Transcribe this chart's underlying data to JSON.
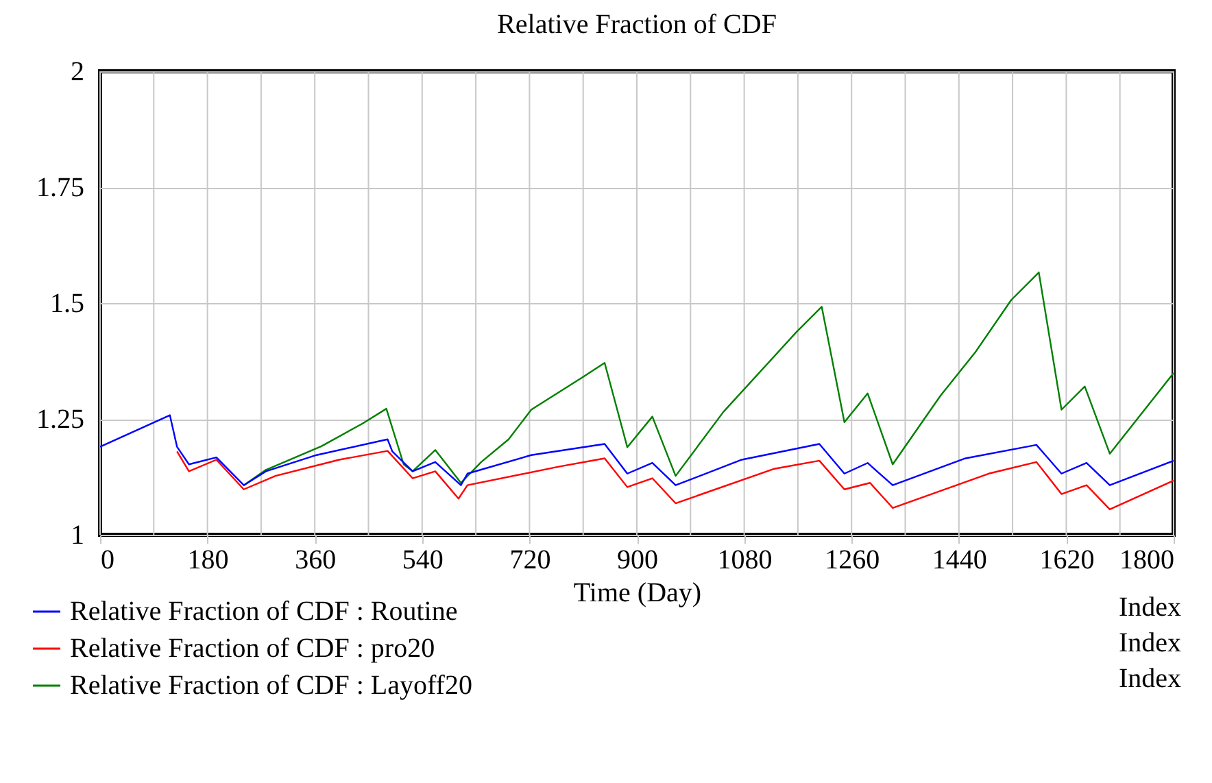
{
  "chart_data": {
    "type": "line",
    "title": "Relative Fraction of CDF",
    "xlabel": "Time (Day)",
    "xlim": [
      0,
      1800
    ],
    "xticks": [
      0,
      {
        "value": 90,
        "label": null
      },
      180,
      {
        "value": 270,
        "label": null
      },
      360,
      {
        "value": 450,
        "label": null
      },
      540,
      {
        "value": 630,
        "label": null
      },
      720,
      {
        "value": 810,
        "label": null
      },
      900,
      {
        "value": 990,
        "label": null
      },
      1080,
      {
        "value": 1170,
        "label": null
      },
      1260,
      {
        "value": 1350,
        "label": null
      },
      1440,
      {
        "value": 1530,
        "label": null
      },
      1620,
      {
        "value": 1710,
        "label": null
      },
      1800
    ],
    "ylim": [
      1,
      2
    ],
    "yticks": [
      1,
      1.25,
      1.5,
      1.75,
      2
    ],
    "grid": true,
    "legend": "bottom",
    "marker": "none",
    "annotations": [
      "Index",
      "Index",
      "Index"
    ],
    "series": [
      {
        "name": "Relative Fraction of CDF : Routine",
        "color": "#0000ff",
        "x": [
          0,
          117,
          129,
          149,
          195,
          241,
          278,
          363,
          482,
          490,
          524,
          562,
          605,
          616,
          723,
          846,
          884,
          926,
          965,
          1076,
          1206,
          1248,
          1287,
          1329,
          1451,
          1570,
          1612,
          1654,
          1693,
          1800
        ],
        "values": [
          1.19,
          1.258,
          1.19,
          1.152,
          1.167,
          1.107,
          1.137,
          1.172,
          1.206,
          1.18,
          1.137,
          1.157,
          1.107,
          1.132,
          1.172,
          1.196,
          1.132,
          1.155,
          1.107,
          1.162,
          1.196,
          1.132,
          1.155,
          1.107,
          1.165,
          1.194,
          1.132,
          1.155,
          1.107,
          1.16
        ]
      },
      {
        "name": "Relative Fraction of CDF : pro20",
        "color": "#ff0000",
        "x": [
          129,
          149,
          195,
          241,
          294,
          401,
          482,
          524,
          562,
          601,
          616,
          769,
          846,
          884,
          926,
          965,
          1129,
          1206,
          1248,
          1291,
          1329,
          1490,
          1570,
          1612,
          1654,
          1693,
          1800
        ],
        "values": [
          1.18,
          1.137,
          1.162,
          1.098,
          1.127,
          1.162,
          1.181,
          1.122,
          1.137,
          1.078,
          1.107,
          1.147,
          1.165,
          1.103,
          1.122,
          1.068,
          1.142,
          1.16,
          1.098,
          1.112,
          1.058,
          1.132,
          1.157,
          1.088,
          1.107,
          1.055,
          1.117
        ]
      },
      {
        "name": "Relative Fraction of CDF : Layoff20",
        "color": "#008000",
        "x": [
          241,
          278,
          371,
          440,
          480,
          509,
          524,
          562,
          605,
          639,
          685,
          723,
          808,
          846,
          884,
          926,
          965,
          1045,
          1168,
          1210,
          1248,
          1287,
          1329,
          1409,
          1467,
          1528,
          1574,
          1612,
          1651,
          1693,
          1800
        ],
        "values": [
          1.107,
          1.14,
          1.191,
          1.24,
          1.272,
          1.152,
          1.137,
          1.183,
          1.112,
          1.157,
          1.206,
          1.27,
          1.339,
          1.371,
          1.189,
          1.255,
          1.127,
          1.265,
          1.438,
          1.492,
          1.243,
          1.305,
          1.152,
          1.3,
          1.393,
          1.507,
          1.566,
          1.27,
          1.32,
          1.175,
          1.349
        ]
      }
    ]
  }
}
